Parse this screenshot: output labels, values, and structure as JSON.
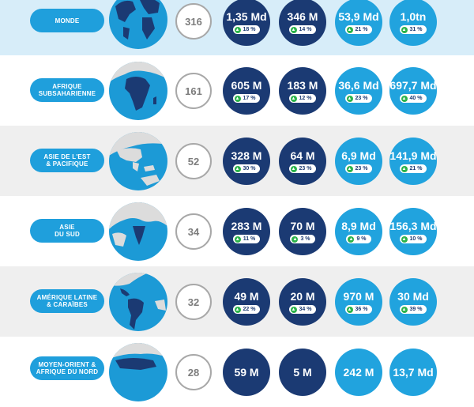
{
  "rows": [
    {
      "region_lines": [
        "MONDE"
      ],
      "globe": "world-globe-icon",
      "count": "316",
      "stats": [
        {
          "value": "1,35 Md",
          "change": "18 %"
        },
        {
          "value": "346 M",
          "change": "14 %"
        },
        {
          "value": "53,9 Md",
          "change": "21 %"
        },
        {
          "value": "1,0tn",
          "change": "31 %"
        }
      ]
    },
    {
      "region_lines": [
        "AFRIQUE",
        "SUBSAHARIENNE"
      ],
      "globe": "africa-globe-icon",
      "count": "161",
      "stats": [
        {
          "value": "605 M",
          "change": "17 %"
        },
        {
          "value": "183 M",
          "change": "12 %"
        },
        {
          "value": "36,6 Md",
          "change": "23 %"
        },
        {
          "value": "697,7 Md",
          "change": "40 %"
        }
      ]
    },
    {
      "region_lines": [
        "ASIE DE L'EST",
        "& PACIFIQUE"
      ],
      "globe": "east-asia-globe-icon",
      "count": "52",
      "stats": [
        {
          "value": "328 M",
          "change": "30 %"
        },
        {
          "value": "64 M",
          "change": "23 %"
        },
        {
          "value": "6,9 Md",
          "change": "23 %"
        },
        {
          "value": "141,9 Md",
          "change": "21 %"
        }
      ]
    },
    {
      "region_lines": [
        "ASIE",
        "DU SUD"
      ],
      "globe": "south-asia-globe-icon",
      "count": "34",
      "stats": [
        {
          "value": "283 M",
          "change": "11 %"
        },
        {
          "value": "70 M",
          "change": "3 %"
        },
        {
          "value": "8,9 Md",
          "change": "9 %"
        },
        {
          "value": "156,3 Md",
          "change": "10 %"
        }
      ]
    },
    {
      "region_lines": [
        "AMÉRIQUE LATINE",
        "& CARAÏBES"
      ],
      "globe": "latin-america-globe-icon",
      "count": "32",
      "stats": [
        {
          "value": "49 M",
          "change": "22 %"
        },
        {
          "value": "20 M",
          "change": "34 %"
        },
        {
          "value": "970 M",
          "change": "36 %"
        },
        {
          "value": "30 Md",
          "change": "39 %"
        }
      ]
    },
    {
      "region_lines": [
        "MOYEN-ORIENT &",
        "AFRIQUE DU NORD"
      ],
      "globe": "mena-globe-icon",
      "count": "28",
      "stats": [
        {
          "value": "59 M",
          "change": ""
        },
        {
          "value": "5 M",
          "change": ""
        },
        {
          "value": "242 M",
          "change": ""
        },
        {
          "value": "13,7 Md",
          "change": ""
        }
      ]
    }
  ],
  "colors": {
    "dark_circle": "#1b3a73",
    "light_circle": "#21a3de",
    "region_pill": "#1f9fdc",
    "up_arrow": "#2bb34a"
  }
}
